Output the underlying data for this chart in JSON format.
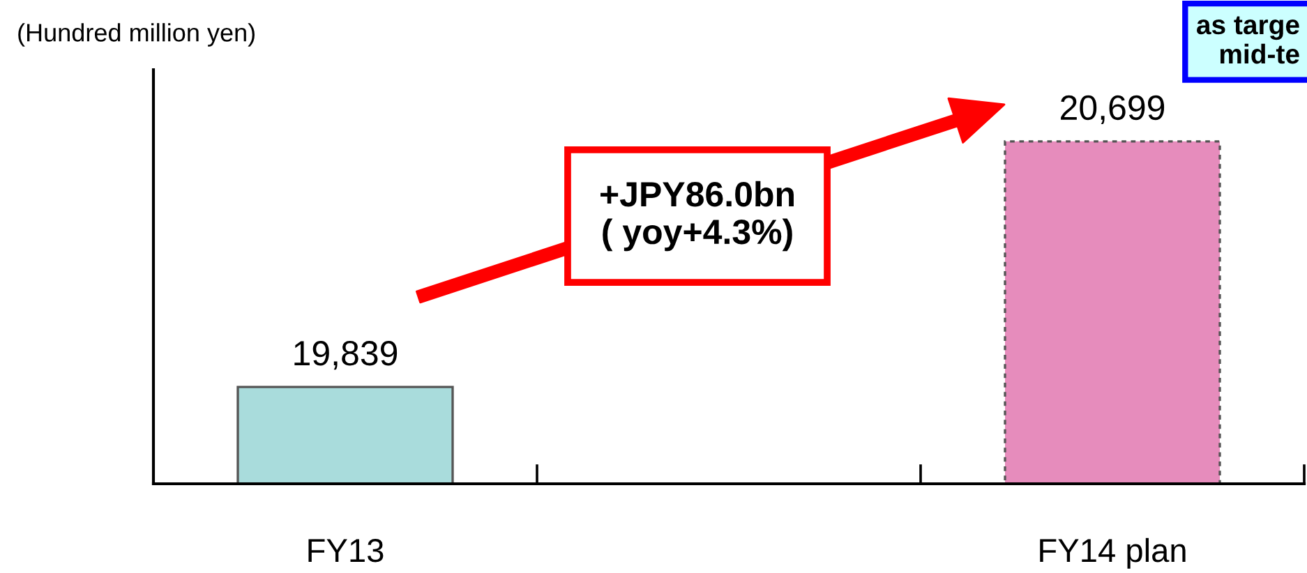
{
  "chart_data": {
    "type": "bar",
    "ylabel": "(Hundred million yen)",
    "categories": [
      "FY13",
      null,
      "FY14 plan"
    ],
    "values": [
      19839,
      null,
      20699
    ],
    "value_labels": [
      "19,839",
      null,
      "20,699"
    ],
    "colors": [
      "#a9dcdc",
      null,
      "#e68cbc"
    ],
    "ylim": [
      19500,
      20950
    ],
    "tick_labels": "x",
    "grid": false,
    "legend": false,
    "annotations": [
      "+JPY86.0bn\n( yoy+4.3%)",
      "as targe\nmid-te"
    ]
  }
}
